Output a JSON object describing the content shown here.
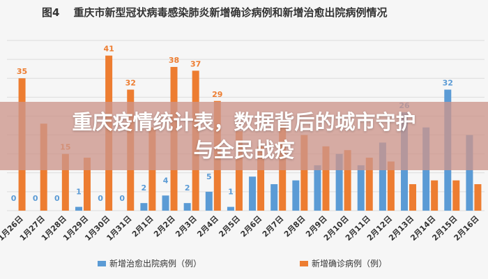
{
  "colors": {
    "discharged": "#5b9bd5",
    "confirmed": "#ed7d31",
    "overlay": "#cd968c"
  },
  "chart_data": {
    "type": "bar",
    "figure_label": "图4",
    "title": "重庆市新型冠状病毒感染肺炎新增确诊病例和新增治愈出院病例情况",
    "categories": [
      "1月26日",
      "1月27日",
      "1月28日",
      "1月29日",
      "1月30日",
      "1月31日",
      "2月1日",
      "2月2日",
      "2月3日",
      "2月4日",
      "2月5日",
      "2月6日",
      "2月7日",
      "2月8日",
      "2月9日",
      "2月10日",
      "2月11日",
      "2月12日",
      "2月13日",
      "2月14日",
      "2月15日",
      "2月16日"
    ],
    "series": [
      {
        "name": "新增治愈出院病例（例）",
        "color": "#5b9bd5",
        "values": [
          0,
          0,
          0,
          1,
          0,
          0,
          2,
          4,
          2,
          5,
          1,
          9,
          7,
          8,
          12,
          15,
          12,
          18,
          26,
          22,
          32,
          20
        ]
      },
      {
        "name": "新增确诊病例（例）",
        "color": "#ed7d31",
        "values": [
          35,
          23,
          15,
          14,
          41,
          32,
          22,
          38,
          37,
          29,
          21,
          17,
          23,
          20,
          17,
          16,
          14,
          13,
          7,
          8,
          8,
          7
        ]
      }
    ],
    "labels_visible": {
      "discharged": [
        "0",
        "0",
        "0",
        "1",
        "0",
        "0",
        "2",
        "4",
        "2",
        "5",
        "1",
        "",
        "",
        "",
        "",
        "",
        "",
        "",
        "26",
        "",
        "32",
        ""
      ],
      "confirmed": [
        "35",
        "",
        "15",
        "",
        "41",
        "32",
        "",
        "38",
        "37",
        "29",
        "",
        "",
        "",
        "",
        "",
        "",
        "",
        "",
        "",
        "",
        "",
        ""
      ]
    },
    "ylim": [
      0,
      45
    ],
    "grid": true,
    "legend_position": "bottom"
  },
  "overlay": {
    "line1": "重庆疫情统计表，数据背后的城市守护",
    "line2": "与全民战疫"
  }
}
